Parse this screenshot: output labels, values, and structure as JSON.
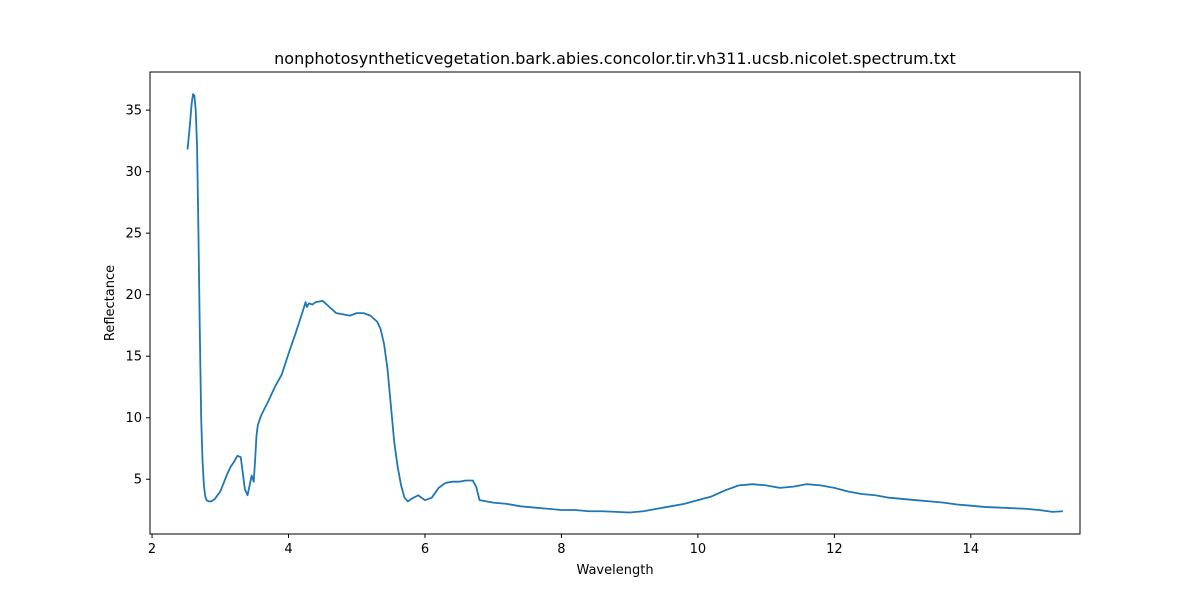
{
  "chart_data": {
    "type": "line",
    "title": "nonphotosyntheticvegetation.bark.abies.concolor.tir.vh311.ucsb.nicolet.spectrum.txt",
    "xlabel": "Wavelength",
    "ylabel": "Reflectance",
    "xlim": [
      1.97,
      15.6
    ],
    "ylim": [
      0.55,
      38.1
    ],
    "xticks": [
      2,
      4,
      6,
      8,
      10,
      12,
      14
    ],
    "yticks": [
      5,
      10,
      15,
      20,
      25,
      30,
      35
    ],
    "grid": false,
    "line_color": "#1f77b4",
    "series": [
      {
        "x": [
          2.52,
          2.55,
          2.58,
          2.6,
          2.62,
          2.64,
          2.66,
          2.68,
          2.7,
          2.72,
          2.74,
          2.76,
          2.78,
          2.8,
          2.83,
          2.87,
          2.92,
          3.0,
          3.05,
          3.1,
          3.15,
          3.2,
          3.25,
          3.3,
          3.33,
          3.36,
          3.4,
          3.43,
          3.46,
          3.49,
          3.51,
          3.53,
          3.55,
          3.6,
          3.7,
          3.8,
          3.9,
          4.0,
          4.1,
          4.2,
          4.25,
          4.27,
          4.3,
          4.35,
          4.4,
          4.5,
          4.6,
          4.7,
          4.8,
          4.9,
          5.0,
          5.1,
          5.2,
          5.3,
          5.35,
          5.4,
          5.45,
          5.5,
          5.55,
          5.6,
          5.65,
          5.7,
          5.75,
          5.8,
          5.9,
          6.0,
          6.1,
          6.2,
          6.3,
          6.4,
          6.5,
          6.6,
          6.7,
          6.75,
          6.8,
          6.9,
          7.0,
          7.2,
          7.4,
          7.6,
          7.8,
          8.0,
          8.2,
          8.4,
          8.6,
          8.8,
          9.0,
          9.2,
          9.4,
          9.6,
          9.8,
          10.0,
          10.2,
          10.4,
          10.6,
          10.8,
          11.0,
          11.2,
          11.4,
          11.6,
          11.8,
          12.0,
          12.2,
          12.4,
          12.6,
          12.8,
          13.0,
          13.2,
          13.4,
          13.6,
          13.8,
          14.0,
          14.2,
          14.4,
          14.6,
          14.8,
          15.0,
          15.2,
          15.35
        ],
        "y": [
          31.8,
          33.5,
          35.5,
          36.3,
          36.2,
          35.0,
          32.0,
          25.0,
          17.0,
          10.0,
          6.5,
          4.5,
          3.6,
          3.3,
          3.2,
          3.2,
          3.4,
          4.0,
          4.7,
          5.4,
          6.0,
          6.4,
          6.9,
          6.8,
          5.5,
          4.2,
          3.7,
          4.5,
          5.3,
          4.8,
          6.5,
          8.5,
          9.4,
          10.2,
          11.3,
          12.5,
          13.5,
          15.2,
          16.8,
          18.5,
          19.4,
          19.0,
          19.3,
          19.2,
          19.4,
          19.5,
          19.0,
          18.5,
          18.4,
          18.3,
          18.5,
          18.5,
          18.3,
          17.8,
          17.2,
          16.0,
          14.0,
          11.0,
          8.0,
          6.0,
          4.5,
          3.5,
          3.2,
          3.4,
          3.7,
          3.3,
          3.5,
          4.3,
          4.7,
          4.8,
          4.8,
          4.9,
          4.9,
          4.4,
          3.3,
          3.2,
          3.1,
          3.0,
          2.8,
          2.7,
          2.6,
          2.5,
          2.5,
          2.4,
          2.4,
          2.35,
          2.3,
          2.4,
          2.6,
          2.8,
          3.0,
          3.3,
          3.6,
          4.1,
          4.5,
          4.6,
          4.5,
          4.3,
          4.4,
          4.6,
          4.5,
          4.3,
          4.0,
          3.8,
          3.7,
          3.5,
          3.4,
          3.3,
          3.2,
          3.1,
          2.95,
          2.85,
          2.75,
          2.7,
          2.65,
          2.6,
          2.5,
          2.35,
          2.4
        ]
      }
    ]
  }
}
